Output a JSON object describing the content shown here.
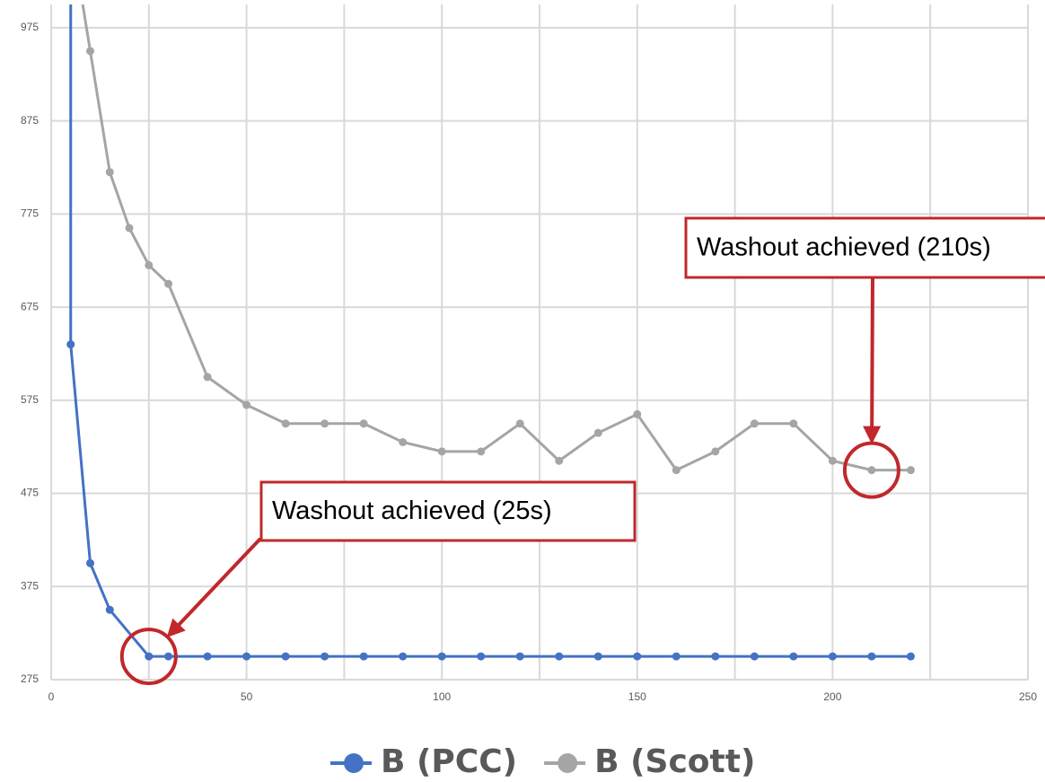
{
  "chart_data": {
    "type": "line",
    "x_pcc": [
      5,
      5,
      10,
      15,
      25,
      30,
      40,
      50,
      60,
      70,
      80,
      90,
      100,
      110,
      120,
      130,
      140,
      150,
      160,
      170,
      180,
      190,
      200,
      210,
      220
    ],
    "x_scott": [
      5,
      10,
      15,
      20,
      25,
      30,
      40,
      50,
      60,
      70,
      80,
      90,
      100,
      110,
      120,
      130,
      140,
      150,
      160,
      170,
      180,
      190,
      200,
      210,
      220
    ],
    "series": [
      {
        "name": "B (PCC)",
        "color": "#4472c4",
        "xkey": "x_pcc",
        "values": [
          1100,
          635,
          400,
          350,
          300,
          300,
          300,
          300,
          300,
          300,
          300,
          300,
          300,
          300,
          300,
          300,
          300,
          300,
          300,
          300,
          300,
          300,
          300,
          300,
          300
        ],
        "hidden_markers": [
          0
        ]
      },
      {
        "name": "B (Scott)",
        "color": "#a5a5a5",
        "xkey": "x_scott",
        "values": [
          1080,
          950,
          820,
          760,
          720,
          700,
          600,
          570,
          550,
          550,
          550,
          530,
          520,
          520,
          550,
          510,
          540,
          560,
          500,
          520,
          550,
          550,
          510,
          500,
          500
        ],
        "hidden_markers": [
          0
        ]
      }
    ],
    "xlim": [
      0,
      250
    ],
    "xticks": [
      0,
      50,
      100,
      150,
      200,
      250
    ],
    "x_minor_grid": [
      25,
      75,
      125,
      175,
      225
    ],
    "ylim": [
      275,
      1000
    ],
    "yticks": [
      275,
      375,
      475,
      575,
      675,
      775,
      875,
      975
    ],
    "grid": true,
    "legend": "bottom",
    "annotations": [
      {
        "text": "Washout achieved (25s)",
        "x": 25,
        "y": 300
      },
      {
        "text": "Washout achieved (210s)",
        "x": 210,
        "y": 500
      }
    ]
  }
}
